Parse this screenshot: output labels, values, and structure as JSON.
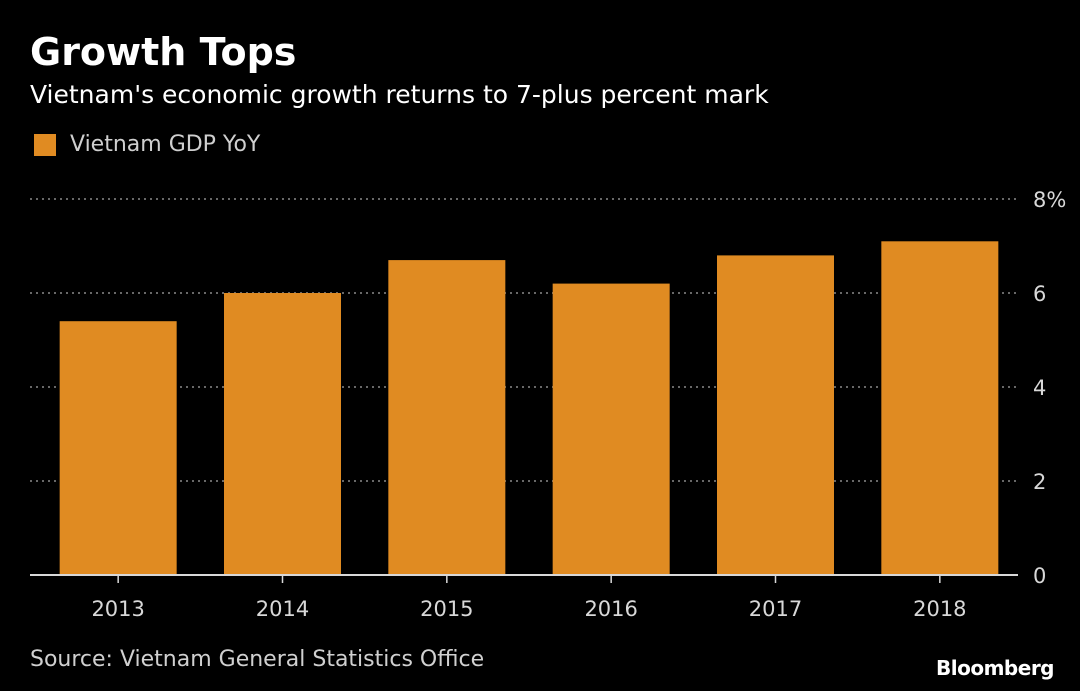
{
  "chart_data": {
    "type": "bar",
    "title": "Growth Tops",
    "subtitle": "Vietnam's economic growth returns to 7-plus percent mark",
    "categories": [
      "2013",
      "2014",
      "2015",
      "2016",
      "2017",
      "2018"
    ],
    "series": [
      {
        "name": "Vietnam GDP YoY",
        "values": [
          5.4,
          6.0,
          6.7,
          6.2,
          6.8,
          7.1
        ]
      }
    ],
    "ylim": [
      0,
      8
    ],
    "yticks": [
      0,
      2,
      4,
      6,
      8
    ],
    "ytick_labels": [
      "0",
      "2",
      "4",
      "6",
      "8%"
    ],
    "xlabel": "",
    "ylabel": "",
    "y_axis_side": "right",
    "grid": true,
    "legend_position": "top-left",
    "colors": {
      "bar": "#E08B22",
      "background": "#000000",
      "grid": "#8a8a8a",
      "axis": "#d8d8d8"
    }
  },
  "source": "Source: Vietnam General Statistics Office",
  "brand": "Bloomberg"
}
